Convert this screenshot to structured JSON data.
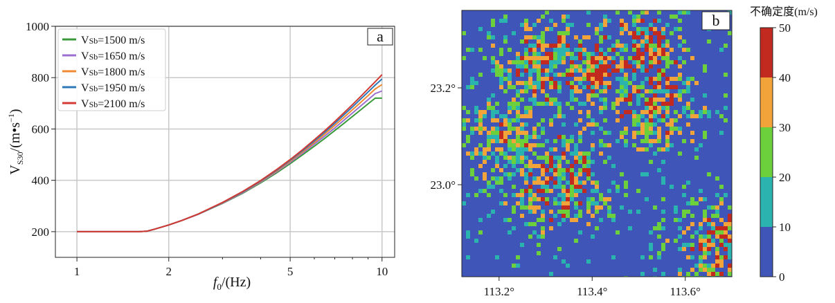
{
  "chart_data": [
    {
      "type": "line",
      "panel_label": "a",
      "xlabel_var": "f",
      "xlabel_sub": "0",
      "xlabel_unit": "/(Hz)",
      "ylabel_var": "V",
      "ylabel_sub": "S30",
      "ylabel_unit": "/(m•s",
      "ylabel_exp": "−1",
      "ylabel_close": ")",
      "xscale": "log",
      "xlim": [
        0.85,
        11
      ],
      "ylim": [
        100,
        1000
      ],
      "xticks": [
        1,
        2,
        5,
        10
      ],
      "xtick_labels": [
        "1",
        "2",
        "5",
        "10"
      ],
      "yticks": [
        200,
        400,
        600,
        800,
        1000
      ],
      "ytick_labels": [
        "200",
        "400",
        "600",
        "800",
        "1000"
      ],
      "grid": true,
      "legend_position": "top-left",
      "x": [
        1.0,
        1.2,
        1.4,
        1.6,
        1.7,
        1.8,
        2.0,
        2.2,
        2.5,
        2.8,
        3.0,
        3.5,
        4.0,
        4.5,
        5.0,
        5.5,
        6.0,
        6.5,
        7.0,
        7.5,
        8.0,
        8.5,
        9.0,
        9.5,
        10.0
      ],
      "series": [
        {
          "name_var": "V",
          "name_sub": "Sb",
          "name_value": "=1500 m/s",
          "color": "#3a9a3a",
          "values": [
            200,
            200,
            200,
            200,
            202,
            210,
            226,
            243,
            268,
            294,
            310,
            350,
            390,
            428,
            465,
            500,
            533,
            564,
            594,
            622,
            649,
            674,
            698,
            720,
            720
          ]
        },
        {
          "name_var": "V",
          "name_sub": "Sb",
          "name_value": "=1650 m/s",
          "color": "#9b6fcf",
          "values": [
            200,
            200,
            200,
            200,
            202,
            210,
            226,
            243,
            268,
            295,
            311,
            352,
            393,
            432,
            470,
            506,
            541,
            573,
            604,
            634,
            662,
            689,
            714,
            738,
            748
          ]
        },
        {
          "name_var": "V",
          "name_sub": "Sb",
          "name_value": "=1800 m/s",
          "color": "#f08a32",
          "values": [
            200,
            200,
            200,
            200,
            202,
            210,
            226,
            243,
            269,
            296,
            312,
            354,
            395,
            435,
            474,
            511,
            547,
            581,
            614,
            645,
            675,
            703,
            730,
            756,
            773
          ]
        },
        {
          "name_var": "V",
          "name_sub": "Sb",
          "name_value": "=1950 m/s",
          "color": "#2f78b8",
          "values": [
            200,
            200,
            200,
            200,
            202,
            210,
            226,
            243,
            269,
            296,
            313,
            355,
            397,
            438,
            478,
            516,
            553,
            588,
            622,
            655,
            686,
            716,
            744,
            771,
            795
          ]
        },
        {
          "name_var": "V",
          "name_sub": "Sb",
          "name_value": "=2100 m/s",
          "color": "#d33a33",
          "values": [
            200,
            200,
            200,
            200,
            202,
            210,
            226,
            243,
            269,
            297,
            314,
            357,
            399,
            441,
            481,
            520,
            558,
            594,
            629,
            663,
            695,
            726,
            756,
            784,
            812
          ]
        }
      ]
    },
    {
      "type": "heatmap",
      "panel_label": "b",
      "xlim": [
        113.12,
        113.7
      ],
      "ylim": [
        22.81,
        23.36
      ],
      "xticks": [
        113.2,
        113.4,
        113.6
      ],
      "xtick_labels": [
        "113.2°",
        "113.4°",
        "113.6°"
      ],
      "yticks": [
        23.0,
        23.2
      ],
      "ytick_labels": [
        "23.0°",
        "23.2°"
      ],
      "colorbar_title": "不确定度(m/s)",
      "colorbar_ticks": [
        "0",
        "10",
        "20",
        "30",
        "40",
        "50"
      ],
      "colorbar_bins": [
        {
          "range": [
            0,
            10
          ],
          "color": "#3f55b8"
        },
        {
          "range": [
            10,
            20
          ],
          "color": "#2bb3b0"
        },
        {
          "range": [
            20,
            30
          ],
          "color": "#6ccf3c"
        },
        {
          "range": [
            30,
            40
          ],
          "color": "#f2a43a"
        },
        {
          "range": [
            40,
            50
          ],
          "color": "#c22a20"
        }
      ],
      "background_level": "0-10",
      "hotspots": [
        {
          "lon": 113.5,
          "lat": 23.27,
          "peak_level": "40-50"
        },
        {
          "lon": 113.4,
          "lat": 23.24,
          "peak_level": "40-50"
        },
        {
          "lon": 113.3,
          "lat": 23.25,
          "peak_level": "30-40"
        },
        {
          "lon": 113.33,
          "lat": 23.01,
          "peak_level": "40-50"
        },
        {
          "lon": 113.68,
          "lat": 22.88,
          "peak_level": "30-40"
        },
        {
          "lon": 113.52,
          "lat": 23.17,
          "peak_level": "30-40"
        },
        {
          "lon": 113.22,
          "lat": 23.1,
          "peak_level": "20-30"
        }
      ]
    }
  ]
}
